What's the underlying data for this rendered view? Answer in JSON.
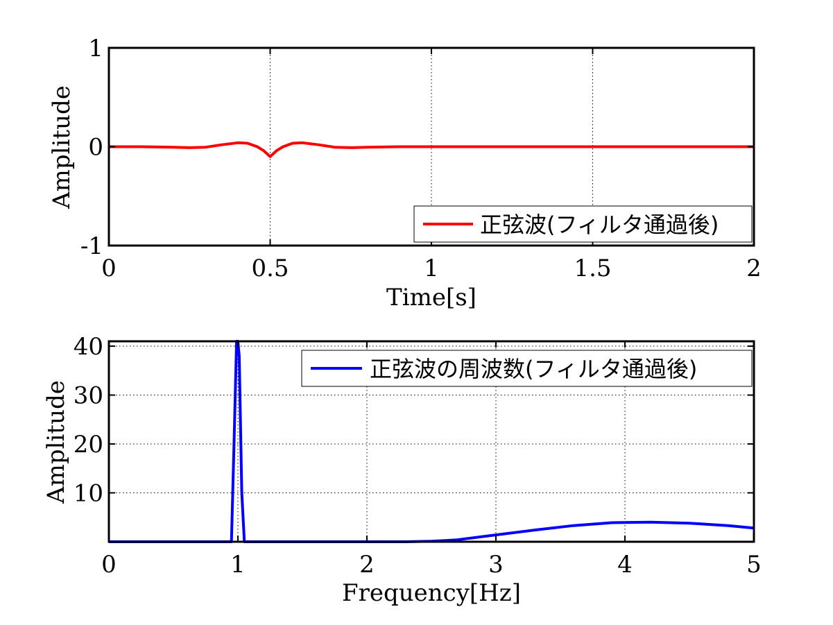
{
  "chart_data": [
    {
      "type": "line",
      "xlabel": "Time[s]",
      "ylabel": "Amplitude",
      "xlim": [
        0,
        2
      ],
      "ylim": [
        -1,
        1
      ],
      "xticks": [
        0,
        0.5,
        1,
        1.5,
        2
      ],
      "xtick_labels": [
        "0",
        "0.5",
        "1",
        "1.5",
        "2"
      ],
      "yticks": [
        -1,
        0,
        1
      ],
      "ytick_labels": [
        "-1",
        "0",
        "1"
      ],
      "grid": "vertical dotted",
      "legend_position": "bottom-right",
      "series": [
        {
          "name": "正弦波(フィルタ通過後)",
          "color": "#ff0000",
          "x": [
            0,
            0.1,
            0.2,
            0.25,
            0.3,
            0.35,
            0.4,
            0.43,
            0.46,
            0.48,
            0.5,
            0.52,
            0.54,
            0.57,
            0.6,
            0.65,
            0.7,
            0.75,
            0.8,
            0.9,
            1.0,
            1.2,
            1.4,
            1.6,
            1.8,
            2.0
          ],
          "y": [
            0.0,
            0.0,
            -0.005,
            -0.01,
            -0.005,
            0.02,
            0.04,
            0.035,
            0.0,
            -0.04,
            -0.1,
            -0.04,
            0.0,
            0.035,
            0.04,
            0.02,
            -0.005,
            -0.01,
            -0.005,
            0.0,
            0.0,
            0.0,
            0.0,
            0.0,
            0.0,
            0.0
          ]
        }
      ]
    },
    {
      "type": "line",
      "xlabel": "Frequency[Hz]",
      "ylabel": "Amplitude",
      "xlim": [
        0,
        5
      ],
      "ylim": [
        0,
        41
      ],
      "xticks": [
        0,
        1,
        2,
        3,
        4,
        5
      ],
      "xtick_labels": [
        "0",
        "1",
        "2",
        "3",
        "4",
        "5"
      ],
      "yticks": [
        10,
        20,
        30,
        40
      ],
      "ytick_labels": [
        "10",
        "20",
        "30",
        "40"
      ],
      "grid": "both dotted",
      "legend_position": "top-right",
      "series": [
        {
          "name": "正弦波の周波数(フィルタ通過後)",
          "color": "#0000ff",
          "x": [
            0,
            0.5,
            0.95,
            0.97,
            0.99,
            1.0,
            1.01,
            1.03,
            1.05,
            1.5,
            2.0,
            2.3,
            2.5,
            2.7,
            3.0,
            3.3,
            3.6,
            3.9,
            4.2,
            4.5,
            4.8,
            5.0
          ],
          "y": [
            0,
            0,
            0,
            20,
            41,
            41,
            38,
            10,
            0,
            0,
            0,
            0,
            0.1,
            0.4,
            1.4,
            2.4,
            3.3,
            3.9,
            4.0,
            3.8,
            3.3,
            2.8
          ]
        }
      ]
    }
  ]
}
